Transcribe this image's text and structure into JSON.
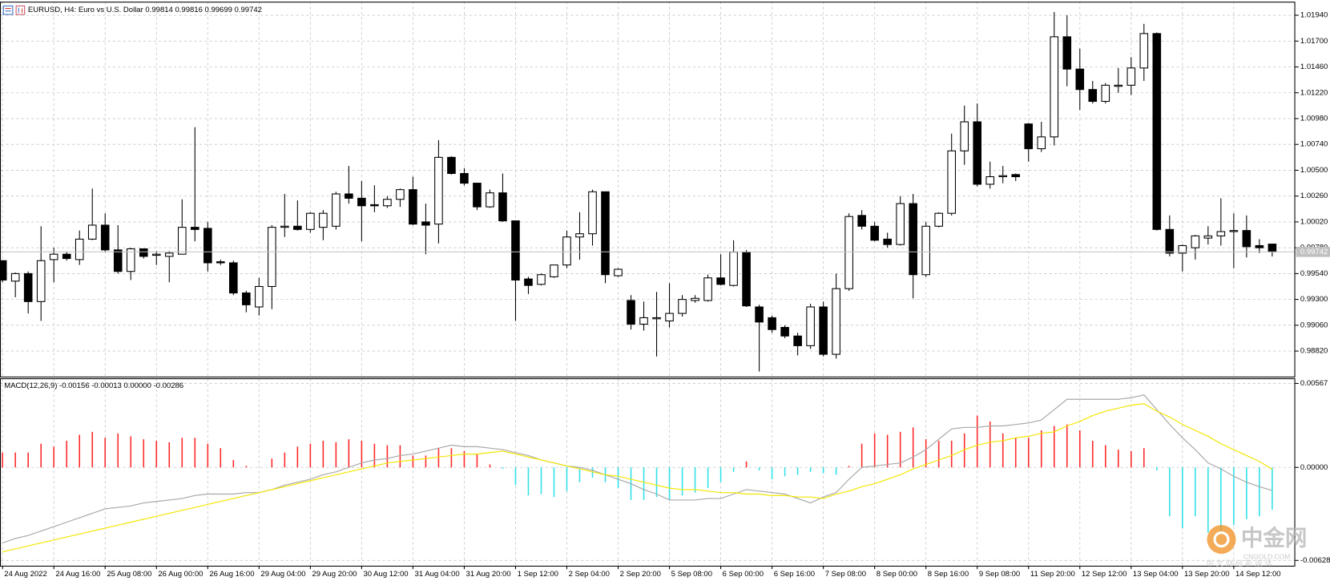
{
  "chart_data": [
    {
      "type": "candlestick",
      "title": "EURUSD, H4:  Euro vs U.S. Dollar  0.99814 0.99816 0.99699 0.99742",
      "categories": [
        "24 Aug 2022",
        null,
        null,
        null,
        "24 Aug 16:00",
        null,
        null,
        null,
        "25 Aug 08:00",
        null,
        null,
        null,
        "26 Aug 00:00",
        null,
        null,
        null,
        "26 Aug 16:00",
        null,
        null,
        null,
        "29 Aug 04:00",
        null,
        null,
        null,
        "29 Aug 20:00",
        null,
        null,
        null,
        "30 Aug 12:00",
        null,
        null,
        null,
        "31 Aug 04:00",
        null,
        null,
        null,
        "31 Aug 20:00",
        null,
        null,
        null,
        "1 Sep 12:00",
        null,
        null,
        null,
        "2 Sep 04:00",
        null,
        null,
        null,
        "2 Sep 20:00",
        null,
        null,
        null,
        "5 Sep 08:00",
        null,
        null,
        null,
        "6 Sep 00:00",
        null,
        null,
        null,
        "6 Sep 16:00",
        null,
        null,
        null,
        "7 Sep 08:00",
        null,
        null,
        null,
        "8 Sep 00:00",
        null,
        null,
        null,
        "8 Sep 16:00",
        null,
        null,
        null,
        "9 Sep 08:00",
        null,
        null,
        null,
        "11 Sep 20:00",
        null,
        null,
        null,
        "12 Sep 12:00",
        null,
        null,
        null,
        "13 Sep 04:00",
        null,
        null,
        null,
        "13 Sep 20:00",
        null,
        null,
        null,
        "14 Sep 12:00",
        null,
        null,
        null
      ],
      "open": [
        0.9966,
        0.9947,
        0.9954,
        0.9928,
        0.9967,
        0.9972,
        0.9967,
        0.9986,
        0.9999,
        0.9976,
        0.9956,
        0.9977,
        0.9971,
        0.997,
        0.9972,
        0.9997,
        0.9996,
        0.9965,
        0.9964,
        0.9936,
        0.9923,
        0.9942,
        0.9997,
        0.9998,
        0.9995,
        0.9997,
        0.9998,
        1.0028,
        1.0024,
        1.0018,
        1.0017,
        1.0023,
        1.0032,
        1.0002,
        1.0,
        1.0062,
        1.0047,
        1.0038,
        1.0016,
        1.0029,
        1.0003,
        0.9949,
        0.9944,
        0.9951,
        0.9962,
        0.9988,
        0.9991,
        1.003,
        0.9952,
        0.9929,
        0.9907,
        0.9912,
        0.991,
        0.9917,
        0.9929,
        0.9929,
        0.995,
        0.9943,
        0.9974,
        0.9923,
        0.9913,
        0.9904,
        0.9896,
        0.9887,
        0.9923,
        0.9879,
        0.994,
        1.0008,
        0.9998,
        0.9986,
        0.9981,
        1.0019,
        0.9953,
        0.9998,
        1.001,
        1.0068,
        1.0095,
        1.0037,
        1.0044,
        1.0046,
        1.0093,
        1.007,
        1.0081,
        1.0174,
        1.0144,
        1.0125,
        1.0114,
        1.0128,
        1.0129,
        1.0145,
        1.0177,
        0.9995,
        0.9973,
        0.9978,
        0.9987,
        0.9989,
        0.9993,
        0.9994,
        0.998,
        0.99814
      ],
      "high": [
        0.9966,
        0.9955,
        0.9956,
        0.9998,
        0.9978,
        0.9974,
        0.9994,
        1.0033,
        1.001,
        0.9999,
        0.9978,
        0.9977,
        0.9975,
        0.9975,
        1.0023,
        1.009,
        1.0002,
        0.9967,
        0.9966,
        0.9938,
        0.995,
        0.9999,
        1.0028,
        1.0022,
        1.0011,
        1.0013,
        1.003,
        1.0054,
        1.004,
        1.0036,
        1.0026,
        1.0033,
        1.0044,
        1.0019,
        1.0078,
        1.0063,
        1.0052,
        1.0038,
        1.0032,
        1.0047,
        1.0003,
        0.9951,
        0.9954,
        0.9962,
        0.9994,
        1.0011,
        1.0032,
        1.003,
        0.9959,
        0.9934,
        0.9928,
        0.9937,
        0.9945,
        0.9934,
        0.9934,
        0.9953,
        0.9972,
        0.9985,
        0.9976,
        0.9925,
        0.9915,
        0.9906,
        0.9899,
        0.9926,
        0.9928,
        0.9954,
        1.001,
        1.0013,
        1.0002,
        0.9992,
        1.0026,
        1.0028,
        1.0002,
        1.0011,
        1.0084,
        1.011,
        1.0112,
        1.0058,
        1.0054,
        1.0047,
        1.0094,
        1.0095,
        1.0197,
        1.0194,
        1.0163,
        1.0133,
        1.0131,
        1.0145,
        1.0155,
        1.0186,
        1.0178,
        1.0008,
        0.9981,
        0.999,
        0.9998,
        1.0024,
        1.001,
        1.0008,
        0.9986,
        0.99816
      ],
      "low": [
        0.9946,
        0.9932,
        0.9917,
        0.991,
        0.9946,
        0.9966,
        0.9962,
        0.9985,
        0.9974,
        0.9954,
        0.9948,
        0.9968,
        0.9962,
        0.9946,
        0.9972,
        0.9984,
        0.9956,
        0.9962,
        0.9934,
        0.9918,
        0.9915,
        0.9921,
        0.9988,
        0.9994,
        0.9992,
        0.9985,
        0.9995,
        1.0019,
        0.9984,
        1.0011,
        1.0015,
        1.0016,
        0.9999,
        0.9972,
        0.9982,
        1.0046,
        1.0036,
        1.0013,
        1.0015,
        1.0002,
        0.991,
        0.9935,
        0.9943,
        0.995,
        0.9959,
        0.9967,
        0.998,
        0.9945,
        0.9951,
        0.9902,
        0.9901,
        0.9877,
        0.9904,
        0.9914,
        0.9927,
        0.9928,
        0.9943,
        0.9942,
        0.9923,
        0.9863,
        0.9899,
        0.9894,
        0.9878,
        0.9884,
        0.9877,
        0.9875,
        0.9938,
        0.9995,
        0.9984,
        0.9978,
        0.998,
        0.9931,
        0.9951,
        0.9997,
        1.0008,
        1.0055,
        1.0035,
        1.0033,
        1.0038,
        1.004,
        1.0058,
        1.0067,
        1.0073,
        1.0128,
        1.0106,
        1.0112,
        1.0112,
        1.0122,
        1.012,
        1.0133,
        0.9994,
        0.997,
        0.9956,
        0.9967,
        0.9981,
        0.998,
        0.9959,
        0.9969,
        0.9973,
        0.99699
      ],
      "close": [
        0.9948,
        0.9954,
        0.9928,
        0.9966,
        0.9972,
        0.9968,
        0.9986,
        0.9999,
        0.9976,
        0.9956,
        0.9977,
        0.997,
        0.9972,
        0.9973,
        0.9997,
        0.9995,
        0.9964,
        0.9964,
        0.9936,
        0.9925,
        0.9942,
        0.9997,
        0.9998,
        0.9995,
        1.001,
        1.001,
        1.0028,
        1.0024,
        1.0017,
        1.0017,
        1.0023,
        1.0032,
        1.0,
        0.9999,
        1.0062,
        1.0047,
        1.0038,
        1.0016,
        1.0029,
        1.0003,
        0.9948,
        0.9943,
        0.9953,
        0.9962,
        0.9988,
        0.9991,
        1.003,
        0.9953,
        0.9958,
        0.9907,
        0.9913,
        0.9913,
        0.9917,
        0.993,
        0.9931,
        0.995,
        0.9944,
        0.9974,
        0.9924,
        0.9909,
        0.9902,
        0.9896,
        0.9887,
        0.9923,
        0.9879,
        0.994,
        1.0007,
        0.9998,
        0.9985,
        0.9981,
        1.0019,
        0.9953,
        0.9998,
        1.001,
        1.0068,
        1.0095,
        1.0037,
        1.0044,
        1.0045,
        1.0044,
        1.007,
        1.0081,
        1.0174,
        1.0144,
        1.0125,
        1.0114,
        1.0129,
        1.0129,
        1.0145,
        1.0177,
        0.9995,
        0.9973,
        0.998,
        0.9989,
        0.9989,
        0.9993,
        0.9994,
        0.9979,
        0.9978,
        0.99742
      ],
      "up_color": "#ffffff",
      "down_color": "#000000",
      "last_price": 0.99742,
      "ylim": [
        0.98583,
        1.02066
      ],
      "yticks": [
        {
          "value": 1.0194,
          "label": "1.01940"
        },
        {
          "value": 1.017,
          "label": "1.01700"
        },
        {
          "value": 1.0146,
          "label": "1.01460"
        },
        {
          "value": 1.0122,
          "label": "1.01220"
        },
        {
          "value": 1.0098,
          "label": "1.00980"
        },
        {
          "value": 1.0074,
          "label": "1.00740"
        },
        {
          "value": 1.005,
          "label": "1.00500"
        },
        {
          "value": 1.0026,
          "label": "1.00260"
        },
        {
          "value": 1.0002,
          "label": "1.00020"
        },
        {
          "value": 0.9978,
          "label": "0.99780"
        },
        {
          "value": 0.9954,
          "label": "0.99540"
        },
        {
          "value": 0.993,
          "label": "0.99300"
        },
        {
          "value": 0.9906,
          "label": "0.99060"
        },
        {
          "value": 0.9882,
          "label": "0.98820"
        }
      ],
      "grid": true
    },
    {
      "type": "macd",
      "title": "MACD(12,26,9) -0.00156 -0.00013 0.00000 -0.00286",
      "series": [
        {
          "type": "bar",
          "color": "#ff2a2a",
          "negative_color": "#33e0e8",
          "values": [
            0.001,
            0.001,
            0.001,
            0.0016,
            0.0014,
            0.0018,
            0.0022,
            0.0024,
            0.002,
            0.0023,
            0.0021,
            0.0019,
            0.0018,
            0.0017,
            0.002,
            0.002,
            0.0016,
            0.0013,
            0.0005,
            0.0001,
            0.0,
            0.0006,
            0.001,
            0.0014,
            0.0016,
            0.0018,
            0.0017,
            0.0019,
            0.0018,
            0.0016,
            0.0015,
            0.0015,
            0.0008,
            0.0008,
            0.0013,
            0.0013,
            0.0011,
            0.0009,
            0.0002,
            -0.0001,
            -0.0012,
            -0.0019,
            -0.0018,
            -0.002,
            -0.0016,
            -0.001,
            -0.0007,
            -0.001,
            -0.0014,
            -0.0022,
            -0.0022,
            -0.002,
            -0.0022,
            -0.0019,
            -0.0017,
            -0.0014,
            -0.001,
            -0.0003,
            0.0004,
            -0.0002,
            -0.0008,
            -0.0006,
            -0.0005,
            -0.0003,
            -0.0004,
            -0.0005,
            0.0001,
            0.0016,
            0.0023,
            0.0022,
            0.0024,
            0.0027,
            0.0019,
            0.0018,
            0.0018,
            0.0023,
            0.0035,
            0.0031,
            0.0023,
            0.002,
            0.002,
            0.0025,
            0.0028,
            0.0029,
            0.0025,
            0.0018,
            0.0015,
            0.0012,
            0.0011,
            0.0013,
            -0.0002,
            -0.0033,
            -0.0041,
            -0.0033,
            -0.0044,
            -0.0043,
            -0.0039,
            -0.0035,
            -0.0033,
            -0.00286
          ]
        },
        {
          "type": "line",
          "color": "#a8a8a8",
          "values": [
            -0.0051,
            -0.0048,
            -0.0046,
            -0.0043,
            -0.004,
            -0.0037,
            -0.0034,
            -0.0031,
            -0.0028,
            -0.0027,
            -0.0026,
            -0.0024,
            -0.0023,
            -0.0022,
            -0.0021,
            -0.0019,
            -0.0018,
            -0.0018,
            -0.0018,
            -0.0017,
            -0.0017,
            -0.0015,
            -0.0012,
            -0.001,
            -0.0008,
            -0.0005,
            -0.0003,
            0.0,
            0.0003,
            0.0005,
            0.0006,
            0.0008,
            0.0009,
            0.0011,
            0.0013,
            0.0015,
            0.0014,
            0.0014,
            0.0013,
            0.0012,
            0.001,
            0.0008,
            0.0005,
            0.0003,
            0.0001,
            0.0,
            -0.0002,
            -0.0005,
            -0.0008,
            -0.0011,
            -0.0015,
            -0.0018,
            -0.0022,
            -0.0022,
            -0.0022,
            -0.0021,
            -0.0021,
            -0.0018,
            -0.0015,
            -0.0016,
            -0.0017,
            -0.0018,
            -0.0021,
            -0.0024,
            -0.002,
            -0.0017,
            -0.0008,
            0.0,
            0.0001,
            0.0002,
            0.0003,
            0.0007,
            0.0012,
            0.0019,
            0.0026,
            0.0027,
            0.0027,
            0.0028,
            0.0028,
            0.0029,
            0.003,
            0.0032,
            0.0039,
            0.0046,
            0.0046,
            0.0046,
            0.0046,
            0.0046,
            0.0047,
            0.0049,
            0.0039,
            0.0029,
            0.002,
            0.0012,
            0.0003,
            -0.0001,
            -0.0006,
            -0.001,
            -0.0013,
            -0.00156
          ]
        },
        {
          "type": "line",
          "color": "#f2e600",
          "values": [
            -0.0057,
            -0.0055,
            -0.0053,
            -0.0051,
            -0.0049,
            -0.0047,
            -0.0045,
            -0.0043,
            -0.0041,
            -0.0039,
            -0.0037,
            -0.0035,
            -0.0033,
            -0.0031,
            -0.0029,
            -0.0027,
            -0.0025,
            -0.0023,
            -0.0021,
            -0.0019,
            -0.0017,
            -0.0015,
            -0.0013,
            -0.0011,
            -0.0009,
            -0.0007,
            -0.0005,
            -0.0003,
            -0.0001,
            0.0001,
            0.0003,
            0.0004,
            0.0005,
            0.0006,
            0.0007,
            0.0008,
            0.0009,
            0.0009,
            0.001,
            0.0011,
            0.0009,
            0.0007,
            0.0005,
            0.0003,
            0.0001,
            -0.0001,
            -0.0003,
            -0.0005,
            -0.0006,
            -0.0008,
            -0.001,
            -0.0012,
            -0.0014,
            -0.0015,
            -0.0015,
            -0.0016,
            -0.0017,
            -0.0017,
            -0.0018,
            -0.0018,
            -0.0019,
            -0.0019,
            -0.002,
            -0.002,
            -0.0021,
            -0.0018,
            -0.0016,
            -0.0013,
            -0.0011,
            -0.0008,
            -0.0005,
            -0.0001,
            0.0002,
            0.0005,
            0.0008,
            0.0012,
            0.0015,
            0.0017,
            0.0018,
            0.002,
            0.0021,
            0.0023,
            0.0024,
            0.0028,
            0.0031,
            0.0035,
            0.0038,
            0.004,
            0.0042,
            0.0043,
            0.0038,
            0.0034,
            0.0029,
            0.0025,
            0.0021,
            0.0016,
            0.0012,
            0.0008,
            0.0004,
            -0.00013
          ]
        }
      ],
      "ylim": [
        -0.00664,
        0.00596
      ],
      "yticks": [
        0.00567,
        {
          "value": 0,
          "label": "0.00000"
        },
        -0.00628
      ],
      "grid": true
    }
  ],
  "watermark": {
    "name": "中金网",
    "site": "CNGOLD.COM",
    "slogan": "中 文 财 经 新 媒 体"
  }
}
